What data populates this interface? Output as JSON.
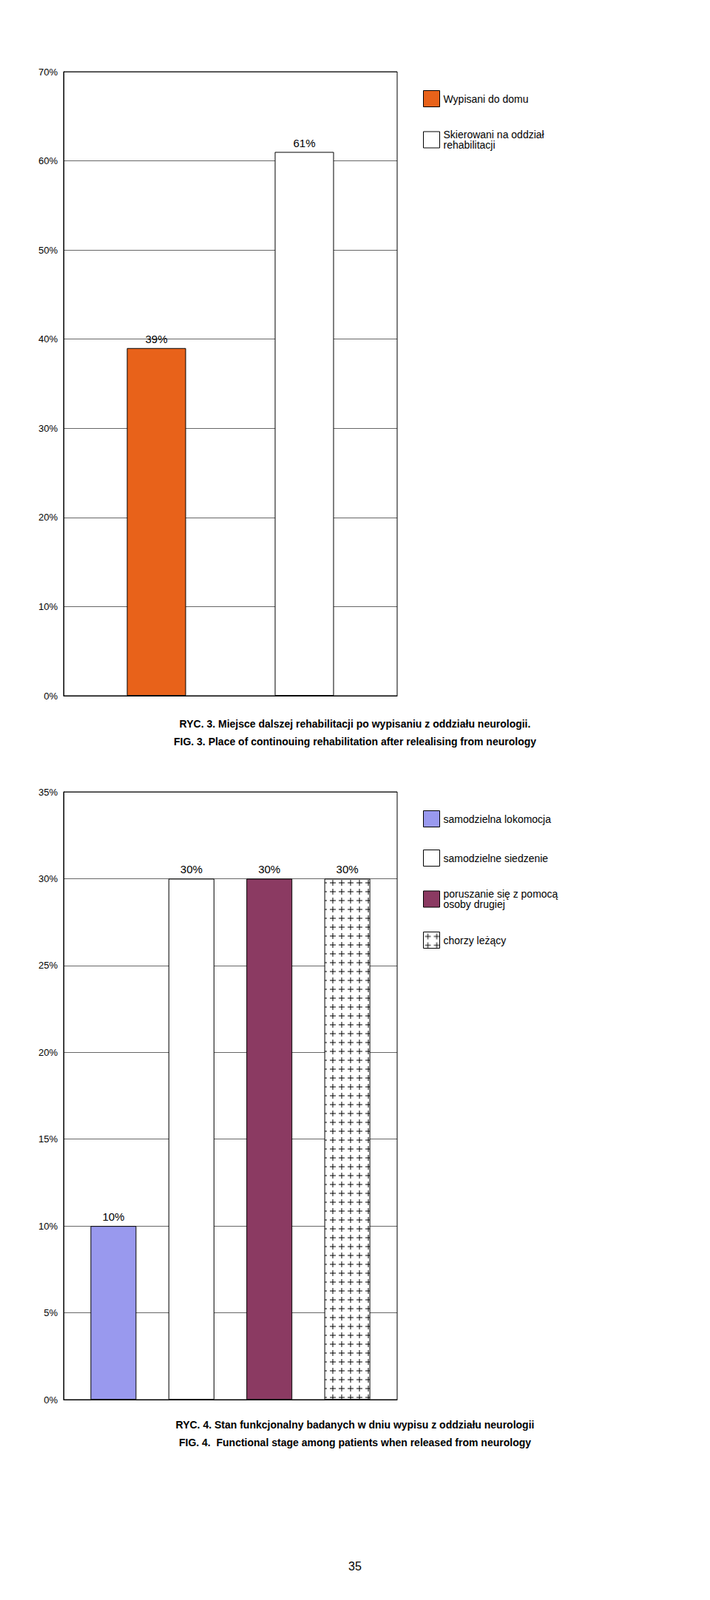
{
  "chart_data": [
    {
      "type": "bar",
      "title": "RYC. 3. Miejsce dalszej rehabilitacji po wypisaniu z oddziału neurologii.",
      "subtitle": "FIG. 3. Place of continouing rehabilitation after relealising from neurology",
      "categories": [
        null
      ],
      "series": [
        {
          "name": "Wypisani do domu",
          "color": "#E8621A",
          "values": [
            39
          ],
          "value_labels": [
            "39%"
          ]
        },
        {
          "name": "Skierowani na oddział\nrehabilitacji",
          "color": "#FFFFFF",
          "values": [
            61
          ],
          "value_labels": [
            "61%"
          ]
        }
      ],
      "ylim": [
        0,
        70
      ],
      "yticks": [
        {
          "value": 0,
          "label": "0%"
        },
        {
          "value": 10,
          "label": "10%"
        },
        {
          "value": 20,
          "label": "20%"
        },
        {
          "value": 30,
          "label": "30%"
        },
        {
          "value": 40,
          "label": "40%"
        },
        {
          "value": 50,
          "label": "50%"
        },
        {
          "value": 60,
          "label": "60%"
        },
        {
          "value": 70,
          "label": "70%"
        }
      ],
      "grid": true,
      "legend": "right",
      "data_labels": true,
      "tick_labels": "y"
    },
    {
      "type": "bar",
      "title": "RYC. 4. Stan funkcjonalny badanych w dniu wypisu z oddziału neurologii",
      "subtitle": "FIG. 4.  Functional stage among patients when released from neurology",
      "categories": [
        null
      ],
      "series": [
        {
          "name": "samodzielna lokomocja",
          "color": "#9999EE",
          "values": [
            10
          ],
          "value_labels": [
            "10%"
          ]
        },
        {
          "name": "samodzielne siedzenie",
          "color": "#FFFFFF",
          "values": [
            30
          ],
          "value_labels": [
            "30%"
          ]
        },
        {
          "name": "poruszanie się z pomocą\nosoby drugiej",
          "color": "#8B3A62",
          "values": [
            30
          ],
          "value_labels": [
            "30%"
          ]
        },
        {
          "name": "chorzy leżący",
          "color": "#FFFFFF",
          "marker": "plus",
          "values": [
            30
          ],
          "value_labels": [
            "30%"
          ]
        }
      ],
      "ylim": [
        0,
        35
      ],
      "yticks": [
        {
          "value": 0,
          "label": "0%"
        },
        {
          "value": 5,
          "label": "5%"
        },
        {
          "value": 10,
          "label": "10%"
        },
        {
          "value": 15,
          "label": "15%"
        },
        {
          "value": 20,
          "label": "20%"
        },
        {
          "value": 25,
          "label": "25%"
        },
        {
          "value": 30,
          "label": "30%"
        },
        {
          "value": 35,
          "label": "35%"
        }
      ],
      "grid": true,
      "legend": "right",
      "data_labels": true,
      "tick_labels": "y",
      "annotations": [
        "35"
      ]
    }
  ]
}
